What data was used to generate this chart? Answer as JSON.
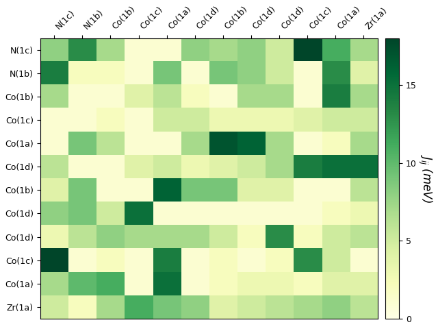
{
  "row_labels": [
    "N(1c)",
    "N(1b)",
    "Co(1b)",
    "Co(1c)",
    "Co(1a)",
    "Co(1d)",
    "Co(1b)",
    "Co(1d)",
    "Co(1d)",
    "Co(1c)",
    "Co(1a)",
    "Zr(1a)"
  ],
  "col_labels": [
    "N(1c)",
    "N(1b)",
    "Co(1b)",
    "Co(1c)",
    "Co(1a)",
    "Co(1d)",
    "Co(1b)",
    "Co(1d)",
    "Co(1d)",
    "Co(1c)",
    "Co(1a)",
    "Zr(1a)"
  ],
  "data": [
    [
      8,
      13,
      7,
      1,
      1,
      8,
      7,
      8,
      5,
      18,
      11,
      7
    ],
    [
      14,
      2,
      2,
      1,
      9,
      1,
      9,
      8,
      5,
      1,
      13,
      4
    ],
    [
      7,
      1,
      1,
      4,
      6,
      2,
      1,
      7,
      7,
      1,
      14,
      7
    ],
    [
      1,
      1,
      2,
      1,
      5,
      5,
      3,
      3,
      3,
      4,
      5,
      5
    ],
    [
      1,
      9,
      6,
      1,
      1,
      7,
      17,
      16,
      7,
      1,
      2,
      7
    ],
    [
      6,
      1,
      1,
      4,
      5,
      3,
      4,
      5,
      7,
      14,
      15,
      15
    ],
    [
      4,
      9,
      1,
      1,
      16,
      9,
      9,
      4,
      4,
      1,
      1,
      6
    ],
    [
      8,
      9,
      5,
      15,
      1,
      1,
      1,
      1,
      1,
      1,
      2,
      3
    ],
    [
      3,
      6,
      8,
      7,
      7,
      7,
      5,
      2,
      13,
      2,
      5,
      6
    ],
    [
      18,
      1,
      2,
      1,
      14,
      1,
      2,
      1,
      2,
      13,
      5,
      1
    ],
    [
      7,
      10,
      11,
      1,
      15,
      1,
      2,
      3,
      3,
      2,
      4,
      4
    ],
    [
      5,
      2,
      7,
      11,
      9,
      8,
      4,
      5,
      6,
      7,
      8,
      6
    ]
  ],
  "vmin": 0,
  "vmax": 18,
  "cmap": "YlGn",
  "colorbar_label": "$J_{ij}$ (meV)",
  "colorbar_ticks": [
    0,
    5,
    10,
    15
  ],
  "figsize": [
    6.4,
    4.8
  ],
  "dpi": 100
}
